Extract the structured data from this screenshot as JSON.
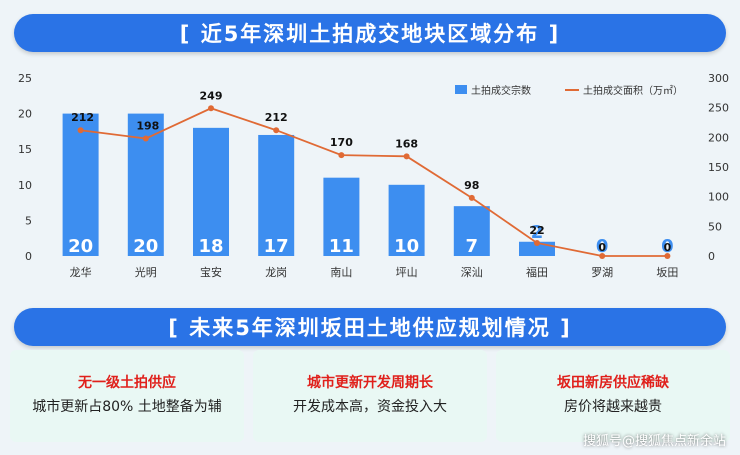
{
  "top_banner": "[ 近5年深圳土拍成交地块区域分布 ]",
  "mid_banner": "[ 未来5年深圳坂田土地供应规划情况 ]",
  "colors": {
    "bar": "#3d8ef0",
    "line": "#e06a35",
    "banner": "#2a73e6",
    "card_title": "#e0201b"
  },
  "chart_data": {
    "type": "bar",
    "title": "",
    "categories": [
      "龙华",
      "光明",
      "宝安",
      "龙岗",
      "南山",
      "坪山",
      "深汕",
      "福田",
      "罗湖",
      "坂田"
    ],
    "series": [
      {
        "name": "土拍成交宗数",
        "type": "bar",
        "axis": "left",
        "values": [
          20,
          20,
          18,
          17,
          11,
          10,
          7,
          2,
          0,
          0
        ]
      },
      {
        "name": "土拍成交面积（万㎡）",
        "type": "line",
        "axis": "right",
        "values": [
          212,
          198,
          249,
          212,
          170,
          168,
          98,
          22,
          0,
          0
        ]
      }
    ],
    "bar_labels": [
      "20",
      "20",
      "18",
      "17",
      "11",
      "10",
      "7",
      "2",
      "0",
      "0"
    ],
    "line_labels": [
      "212",
      "198",
      "249",
      "212",
      "170",
      "168",
      "98",
      "22",
      "0",
      "0"
    ],
    "ylim_left": [
      0,
      25
    ],
    "ylim_right": [
      0,
      300
    ],
    "yticks_left": [
      "0",
      "5",
      "10",
      "15",
      "20",
      "25"
    ],
    "yticks_right": [
      "0",
      "50",
      "100",
      "150",
      "200",
      "250",
      "300"
    ],
    "grid": false,
    "legend_position": "top-right"
  },
  "cards": [
    {
      "title": "无一级土拍供应",
      "body": "城市更新占80% 土地整备为辅"
    },
    {
      "title": "城市更新开发周期长",
      "body": "开发成本高，资金投入大"
    },
    {
      "title": "坂田新房供应稀缺",
      "body": "房价将越来越贵"
    }
  ],
  "watermark": "搜狐号@搜狐焦点新余站"
}
